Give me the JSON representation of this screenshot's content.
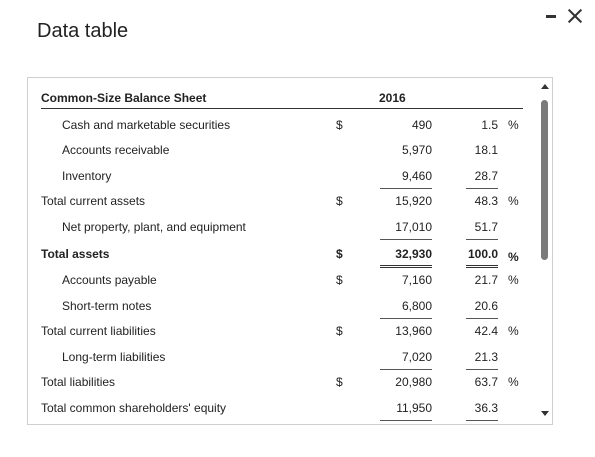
{
  "window": {
    "title": "Data table"
  },
  "table": {
    "header_label": "Common-Size Balance Sheet",
    "year": "2016",
    "rows": [
      {
        "label": "Cash and marketable securities",
        "currency": "$",
        "amount": "490",
        "percent": "1.5",
        "pct_symbol": "%"
      },
      {
        "label": "Accounts receivable",
        "currency": "",
        "amount": "5,970",
        "percent": "18.1",
        "pct_symbol": ""
      },
      {
        "label": "Inventory",
        "currency": "",
        "amount": "9,460",
        "percent": "28.7",
        "pct_symbol": ""
      },
      {
        "label": "Total current assets",
        "currency": "$",
        "amount": "15,920",
        "percent": "48.3",
        "pct_symbol": "%"
      },
      {
        "label": "Net property, plant, and equipment",
        "currency": "",
        "amount": "17,010",
        "percent": "51.7",
        "pct_symbol": ""
      },
      {
        "label": "Total assets",
        "currency": "$",
        "amount": "32,930",
        "percent": "100.0",
        "pct_symbol": "%"
      },
      {
        "label": "Accounts payable",
        "currency": "$",
        "amount": "7,160",
        "percent": "21.7",
        "pct_symbol": "%"
      },
      {
        "label": "Short-term notes",
        "currency": "",
        "amount": "6,800",
        "percent": "20.6",
        "pct_symbol": ""
      },
      {
        "label": "Total current liabilities",
        "currency": "$",
        "amount": "13,960",
        "percent": "42.4",
        "pct_symbol": "%"
      },
      {
        "label": "Long-term liabilities",
        "currency": "",
        "amount": "7,020",
        "percent": "21.3",
        "pct_symbol": ""
      },
      {
        "label": "Total liabilities",
        "currency": "$",
        "amount": "20,980",
        "percent": "63.7",
        "pct_symbol": "%"
      },
      {
        "label": "Total common shareholders' equity",
        "currency": "",
        "amount": "11,950",
        "percent": "36.3",
        "pct_symbol": ""
      }
    ]
  }
}
